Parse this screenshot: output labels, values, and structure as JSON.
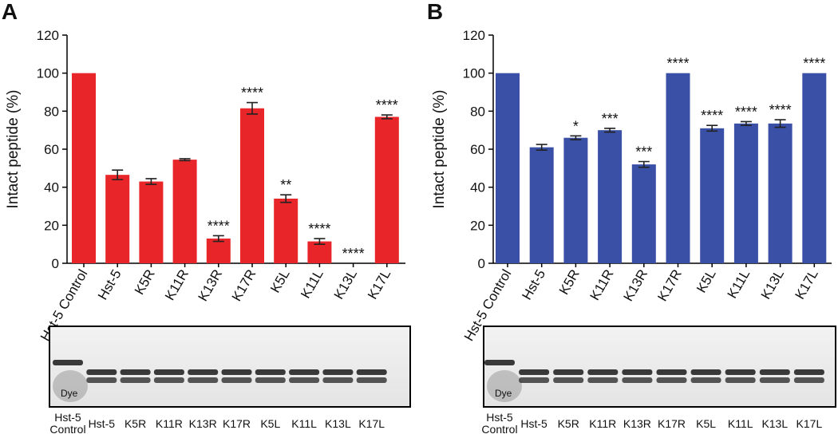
{
  "chart_data": [
    {
      "type": "bar",
      "panel": "A",
      "ylabel": "Intact peptide (%)",
      "color": "#e8262a",
      "categories": [
        "Hst-5 Control",
        "Hst-5",
        "K5R",
        "K11R",
        "K13R",
        "K17R",
        "K5L",
        "K11L",
        "K13L",
        "K17L"
      ],
      "values": [
        100,
        46.5,
        43,
        54.5,
        13,
        81.5,
        34,
        11.5,
        0,
        77
      ],
      "errors": [
        null,
        2.5,
        1.5,
        0.5,
        1.5,
        3,
        2,
        1.5,
        null,
        1
      ],
      "annotations": [
        null,
        null,
        null,
        null,
        "****",
        "****",
        "**",
        "****",
        "****",
        "****"
      ],
      "ylim": [
        0,
        120
      ],
      "yticks": [
        0,
        20,
        40,
        60,
        80,
        100,
        120
      ],
      "gel_lanes": [
        "Hst-5\nControl",
        "Hst-5",
        "K5R",
        "K11R",
        "K13R",
        "K17R",
        "K5L",
        "K11L",
        "K13L",
        "K17L"
      ],
      "gel_note": "Dye"
    },
    {
      "type": "bar",
      "panel": "B",
      "ylabel": "Intact peptide (%)",
      "color": "#3a50a6",
      "categories": [
        "Hst-5 Control",
        "Hst-5",
        "K5R",
        "K11R",
        "K13R",
        "K17R",
        "K5L",
        "K11L",
        "K13L",
        "K17L"
      ],
      "values": [
        100,
        61,
        66,
        70,
        52,
        100,
        71,
        73.5,
        73.5,
        100
      ],
      "errors": [
        null,
        1.5,
        1,
        1,
        1.5,
        null,
        1.5,
        1,
        2,
        null
      ],
      "annotations": [
        null,
        null,
        "*",
        "***",
        "***",
        "****",
        "****",
        "****",
        "****",
        "****"
      ],
      "ylim": [
        0,
        120
      ],
      "yticks": [
        0,
        20,
        40,
        60,
        80,
        100,
        120
      ],
      "gel_lanes": [
        "Hst-5\nControl",
        "Hst-5",
        "K5R",
        "K11R",
        "K13R",
        "K17R",
        "K5L",
        "K11L",
        "K13L",
        "K17L"
      ],
      "gel_note": "Dye"
    }
  ]
}
